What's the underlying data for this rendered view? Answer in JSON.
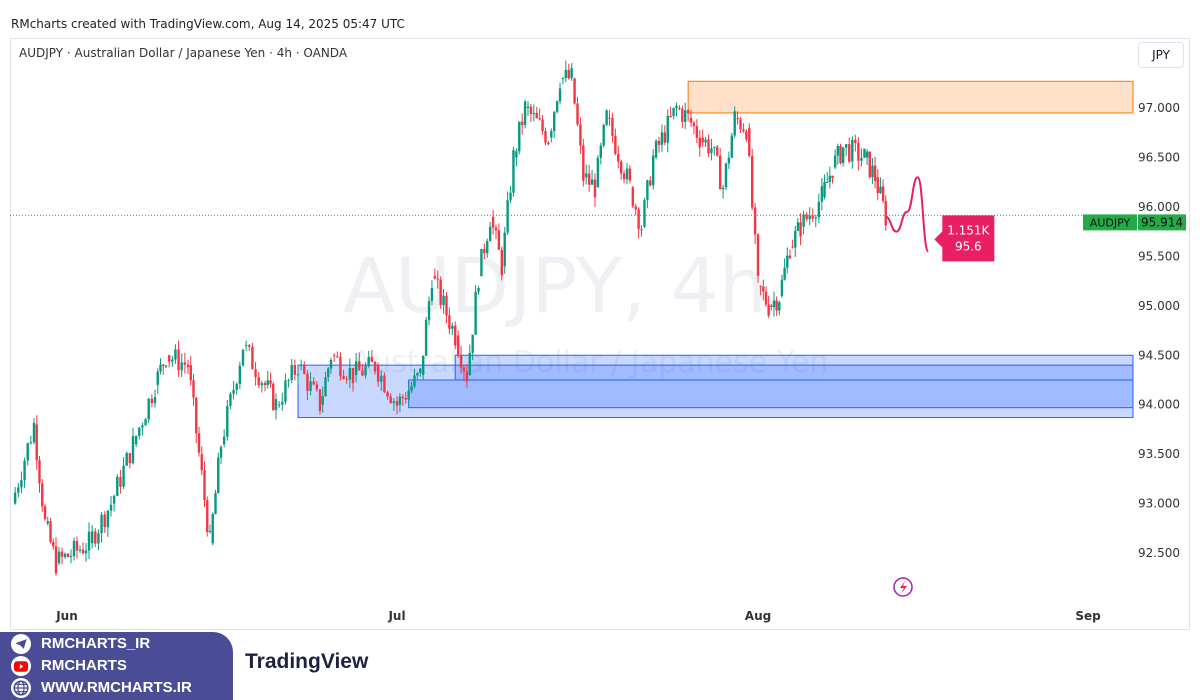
{
  "header": {
    "credit": "RMcharts created with TradingView.com, Aug 14, 2025 05:47 UTC",
    "symbol_line": "AUDJPY · Australian Dollar / Japanese Yen · 4h · OANDA",
    "currency": "JPY"
  },
  "watermark": {
    "line1": "AUDJPY, 4h",
    "line2": "Australian Dollar / Japanese Yen"
  },
  "branding": {
    "telegram": "RMCHARTS_IR",
    "youtube": "RMCHARTS",
    "website": "WWW.RMCHARTS.IR",
    "tv_logo": "TradingView"
  },
  "chart_data": {
    "type": "candlestick",
    "title": "AUDJPY · Australian Dollar / Japanese Yen · 4h · OANDA",
    "ylim": [
      92.1,
      97.5
    ],
    "y_ticks": [
      "92.500",
      "93.000",
      "93.500",
      "94.000",
      "94.500",
      "95.000",
      "95.500",
      "96.000",
      "96.500",
      "97.000"
    ],
    "x_ticks": [
      {
        "label": "Jun",
        "date": "2025-06-01"
      },
      {
        "label": "Jul",
        "date": "2025-07-01"
      },
      {
        "label": "Aug",
        "date": "2025-08-01"
      },
      {
        "label": "Sep",
        "date": "2025-09-01"
      }
    ],
    "grid": false,
    "colors": {
      "up": "#089981",
      "down": "#f23645",
      "forecast": "#e91e63",
      "last_price": "#22ab48",
      "supply": "#f57c00",
      "demand": "#2962ff"
    },
    "closes": [
      [
        "2025-05-27",
        93.0
      ],
      [
        "2025-05-29",
        93.8
      ],
      [
        "2025-05-30",
        92.8
      ],
      [
        "2025-05-31",
        92.4
      ],
      [
        "2025-06-03",
        92.6
      ],
      [
        "2025-06-05",
        93.0
      ],
      [
        "2025-06-07",
        93.6
      ],
      [
        "2025-06-09",
        94.2
      ],
      [
        "2025-06-10",
        94.5
      ],
      [
        "2025-06-12",
        94.4
      ],
      [
        "2025-06-13",
        93.5
      ],
      [
        "2025-06-14",
        92.6
      ],
      [
        "2025-06-15",
        93.6
      ],
      [
        "2025-06-17",
        94.6
      ],
      [
        "2025-06-19",
        94.2
      ],
      [
        "2025-06-20",
        94.0
      ],
      [
        "2025-06-22",
        94.4
      ],
      [
        "2025-06-24",
        94.0
      ],
      [
        "2025-06-25",
        94.5
      ],
      [
        "2025-06-27",
        94.3
      ],
      [
        "2025-06-29",
        94.4
      ],
      [
        "2025-07-01",
        94.0
      ],
      [
        "2025-07-03",
        94.3
      ],
      [
        "2025-07-04",
        95.3
      ],
      [
        "2025-07-06",
        94.7
      ],
      [
        "2025-07-07",
        94.3
      ],
      [
        "2025-07-08",
        95.3
      ],
      [
        "2025-07-09",
        95.9
      ],
      [
        "2025-07-10",
        95.4
      ],
      [
        "2025-07-11",
        96.5
      ],
      [
        "2025-07-12",
        97.0
      ],
      [
        "2025-07-14",
        96.7
      ],
      [
        "2025-07-15",
        97.3
      ],
      [
        "2025-07-16",
        97.3
      ],
      [
        "2025-07-17",
        96.3
      ],
      [
        "2025-07-18",
        96.2
      ],
      [
        "2025-07-19",
        96.9
      ],
      [
        "2025-07-21",
        96.2
      ],
      [
        "2025-07-22",
        95.8
      ],
      [
        "2025-07-23",
        96.5
      ],
      [
        "2025-07-25",
        97.0
      ],
      [
        "2025-07-26",
        96.9
      ],
      [
        "2025-07-27",
        96.7
      ],
      [
        "2025-07-28",
        96.6
      ],
      [
        "2025-07-29",
        96.2
      ],
      [
        "2025-07-30",
        96.9
      ],
      [
        "2025-07-31",
        96.8
      ],
      [
        "2025-08-01",
        95.2
      ],
      [
        "2025-08-02",
        95.0
      ],
      [
        "2025-08-03",
        95.1
      ],
      [
        "2025-08-04",
        95.6
      ],
      [
        "2025-08-05",
        95.8
      ],
      [
        "2025-08-07",
        96.1
      ],
      [
        "2025-08-08",
        96.4
      ],
      [
        "2025-08-09",
        96.6
      ],
      [
        "2025-08-11",
        96.5
      ],
      [
        "2025-08-12",
        96.3
      ],
      [
        "2025-08-13",
        95.9
      ]
    ],
    "forecast": [
      [
        "2025-08-13",
        95.9
      ],
      [
        "2025-08-14",
        95.75
      ],
      [
        "2025-08-15",
        95.95
      ],
      [
        "2025-08-16",
        96.3
      ],
      [
        "2025-08-17",
        95.55
      ]
    ],
    "forecast_label": {
      "volume": "1.151K",
      "price": "95.6"
    },
    "last_price": {
      "symbol": "AUDJPY",
      "value": "95.914",
      "numeric": 95.914
    },
    "zones": [
      {
        "kind": "supply",
        "from": "2025-07-26",
        "top": 97.27,
        "bottom": 96.95
      },
      {
        "kind": "demand",
        "from": "2025-06-22",
        "top": 94.4,
        "bottom": 93.87
      },
      {
        "kind": "demand",
        "from": "2025-07-02",
        "top": 94.25,
        "bottom": 93.97
      },
      {
        "kind": "demand",
        "from": "2025-07-06",
        "top": 94.5,
        "bottom": 94.25
      }
    ]
  }
}
